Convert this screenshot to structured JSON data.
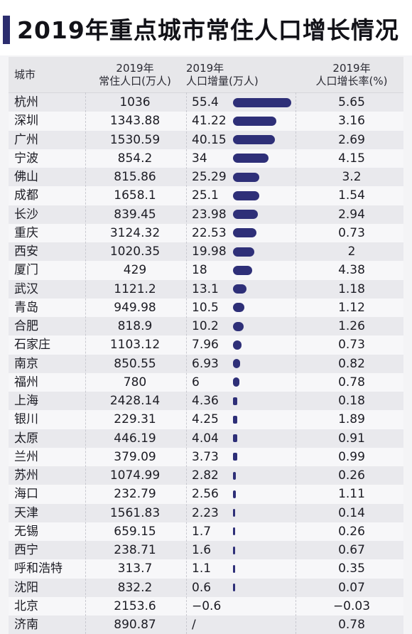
{
  "title": "2019年重点城市常住人口增长情况",
  "colors": {
    "accent": "#2c2d6e",
    "bar": "#2e2f78",
    "row_odd": "#e9e9ed",
    "row_even": "#f7f7f9"
  },
  "chart_data": {
    "type": "table",
    "title": "2019年重点城市常住人口增长情况",
    "columns": [
      {
        "line1": "城市",
        "line2": ""
      },
      {
        "line1": "2019年",
        "line2": "常住人口(万人)"
      },
      {
        "line1": "2019年",
        "line2": "人口增量(万人)"
      },
      {
        "line1": "2019年",
        "line2": "人口增长率(%)"
      }
    ],
    "bar_column": "人口增量(万人)",
    "bar_max": 55.4,
    "rows": [
      {
        "city": "杭州",
        "population": "1036",
        "increase": "55.4",
        "increase_value": 55.4,
        "rate": "5.65"
      },
      {
        "city": "深圳",
        "population": "1343.88",
        "increase": "41.22",
        "increase_value": 41.22,
        "rate": "3.16"
      },
      {
        "city": "广州",
        "population": "1530.59",
        "increase": "40.15",
        "increase_value": 40.15,
        "rate": "2.69"
      },
      {
        "city": "宁波",
        "population": "854.2",
        "increase": "34",
        "increase_value": 34,
        "rate": "4.15"
      },
      {
        "city": "佛山",
        "population": "815.86",
        "increase": "25.29",
        "increase_value": 25.29,
        "rate": "3.2"
      },
      {
        "city": "成都",
        "population": "1658.1",
        "increase": "25.1",
        "increase_value": 25.1,
        "rate": "1.54"
      },
      {
        "city": "长沙",
        "population": "839.45",
        "increase": "23.98",
        "increase_value": 23.98,
        "rate": "2.94"
      },
      {
        "city": "重庆",
        "population": "3124.32",
        "increase": "22.53",
        "increase_value": 22.53,
        "rate": "0.73"
      },
      {
        "city": "西安",
        "population": "1020.35",
        "increase": "19.98",
        "increase_value": 19.98,
        "rate": "2"
      },
      {
        "city": "厦门",
        "population": "429",
        "increase": "18",
        "increase_value": 18,
        "rate": "4.38"
      },
      {
        "city": "武汉",
        "population": "1121.2",
        "increase": "13.1",
        "increase_value": 13.1,
        "rate": "1.18"
      },
      {
        "city": "青岛",
        "population": "949.98",
        "increase": "10.5",
        "increase_value": 10.5,
        "rate": "1.12"
      },
      {
        "city": "合肥",
        "population": "818.9",
        "increase": "10.2",
        "increase_value": 10.2,
        "rate": "1.26"
      },
      {
        "city": "石家庄",
        "population": "1103.12",
        "increase": "7.96",
        "increase_value": 7.96,
        "rate": "0.73"
      },
      {
        "city": "南京",
        "population": "850.55",
        "increase": "6.93",
        "increase_value": 6.93,
        "rate": "0.82"
      },
      {
        "city": "福州",
        "population": "780",
        "increase": "6",
        "increase_value": 6,
        "rate": "0.78"
      },
      {
        "city": "上海",
        "population": "2428.14",
        "increase": "4.36",
        "increase_value": 4.36,
        "rate": "0.18"
      },
      {
        "city": "银川",
        "population": "229.31",
        "increase": "4.25",
        "increase_value": 4.25,
        "rate": "1.89"
      },
      {
        "city": "太原",
        "population": "446.19",
        "increase": "4.04",
        "increase_value": 4.04,
        "rate": "0.91"
      },
      {
        "city": "兰州",
        "population": "379.09",
        "increase": "3.73",
        "increase_value": 3.73,
        "rate": "0.99"
      },
      {
        "city": "苏州",
        "population": "1074.99",
        "increase": "2.82",
        "increase_value": 2.82,
        "rate": "0.26"
      },
      {
        "city": "海口",
        "population": "232.79",
        "increase": "2.56",
        "increase_value": 2.56,
        "rate": "1.11"
      },
      {
        "city": "天津",
        "population": "1561.83",
        "increase": "2.23",
        "increase_value": 2.23,
        "rate": "0.14"
      },
      {
        "city": "无锡",
        "population": "659.15",
        "increase": "1.7",
        "increase_value": 1.7,
        "rate": "0.26"
      },
      {
        "city": "西宁",
        "population": "238.71",
        "increase": "1.6",
        "increase_value": 1.6,
        "rate": "0.67"
      },
      {
        "city": "呼和浩特",
        "population": "313.7",
        "increase": "1.1",
        "increase_value": 1.1,
        "rate": "0.35"
      },
      {
        "city": "沈阳",
        "population": "832.2",
        "increase": "0.6",
        "increase_value": 0.6,
        "rate": "0.07"
      },
      {
        "city": "北京",
        "population": "2153.6",
        "increase": "−0.6",
        "increase_value": -0.6,
        "rate": "−0.03"
      },
      {
        "city": "济南",
        "population": "890.87",
        "increase": "/",
        "increase_value": null,
        "rate": "0.78"
      }
    ]
  }
}
